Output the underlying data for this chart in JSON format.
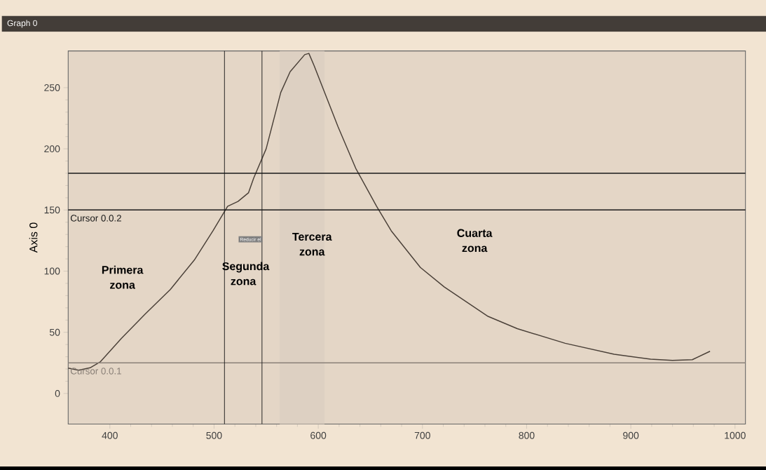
{
  "chart_data": {
    "type": "line",
    "title": "Graph 0",
    "ylabel": "Axis 0",
    "x": [
      360,
      370,
      381,
      391,
      411,
      434,
      458,
      481,
      499,
      513,
      523,
      533,
      538,
      550,
      564,
      573,
      587,
      591,
      596,
      608,
      619,
      636,
      656,
      670,
      698,
      721,
      763,
      791,
      837,
      884,
      919,
      940,
      959,
      976
    ],
    "series": [
      {
        "color": "#4a4038",
        "values": [
          20.7,
          19,
          21,
          26,
          45,
          65,
          85,
          109,
          133,
          153,
          157,
          164,
          176,
          200,
          246,
          263,
          277,
          278,
          268,
          242,
          218,
          184,
          153,
          133,
          103,
          87,
          63,
          53,
          41,
          32,
          28,
          27,
          27.6,
          34.5
        ]
      }
    ],
    "xlim": [
      360,
      1010
    ],
    "ylim": [
      -25,
      280
    ],
    "xticks": [
      400,
      500,
      600,
      700,
      800,
      900,
      1000
    ],
    "yticks": [
      0,
      50,
      100,
      150,
      200,
      250
    ],
    "ref_lines": [
      {
        "axis": "y",
        "value": 180,
        "color": "#1a1a1a"
      },
      {
        "axis": "y",
        "value": 150,
        "color": "#1a1a1a",
        "label": "Cursor 0.0.2"
      },
      {
        "axis": "y",
        "value": 25,
        "color": "#8a8078",
        "label": "Cursor 0.0.1"
      },
      {
        "axis": "x",
        "value": 510,
        "color": "#1a1a1a"
      },
      {
        "axis": "x",
        "value": 546,
        "color": "#1a1a1a"
      }
    ],
    "bands": [
      {
        "axis": "x",
        "from": 563,
        "to": 606,
        "color": "#ddd0c2"
      }
    ],
    "annotations": [
      "Primera zona",
      "Segunda zona",
      "Tercera zona",
      "Cuarta zona",
      "Reducir el"
    ]
  }
}
